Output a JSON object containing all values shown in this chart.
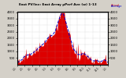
{
  "title": "East PV/Inv: East Array μPerf Ave (w) 1-13",
  "bg_color": "#d4d0c8",
  "plot_bg_color": "#ffffff",
  "ylim": [
    0,
    4000
  ],
  "yticks_left": [
    500,
    1000,
    1500,
    2000,
    2500,
    3000,
    3500,
    4000
  ],
  "yticks_right": [
    500,
    1000,
    1500,
    2000,
    2500,
    3000,
    3500,
    4000
  ],
  "actual_color": "#dd0000",
  "avg_color": "#0000cc",
  "avg_line_style": "--",
  "num_points": 500,
  "month_labels": [
    "1-1",
    "2-1",
    "3-1",
    "4-1",
    "5-1",
    "6-1",
    "7-1",
    "8-1",
    "9-1",
    "10-1",
    "11-1",
    "12-1",
    "1-1"
  ]
}
